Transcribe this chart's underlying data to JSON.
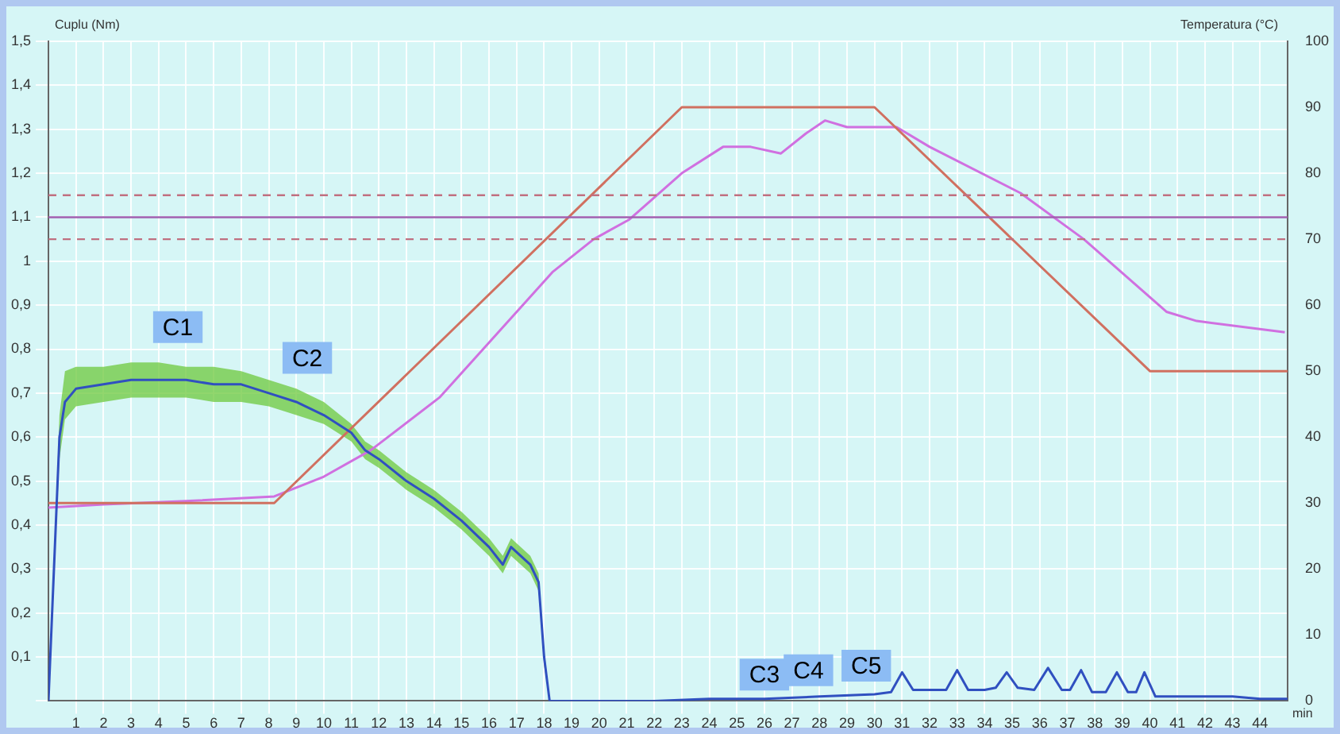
{
  "chart_data": {
    "type": "line",
    "ylabel": "Cuplu (Nm)",
    "y2label": "Temperatura (°C)",
    "xlabel": "min",
    "xlim": [
      0,
      45
    ],
    "xticks": [
      1,
      2,
      3,
      4,
      5,
      6,
      7,
      8,
      9,
      10,
      11,
      12,
      13,
      14,
      15,
      16,
      17,
      18,
      19,
      20,
      21,
      22,
      23,
      24,
      25,
      26,
      27,
      28,
      29,
      30,
      31,
      32,
      33,
      34,
      35,
      36,
      37,
      38,
      39,
      40,
      41,
      42,
      43,
      44
    ],
    "ylim": [
      0,
      1.5
    ],
    "yticks": [
      {
        "value": 0,
        "label": null
      },
      {
        "value": 0.1,
        "label": "0,1"
      },
      {
        "value": 0.2,
        "label": "0,2"
      },
      {
        "value": 0.3,
        "label": "0,3"
      },
      {
        "value": 0.4,
        "label": "0,4"
      },
      {
        "value": 0.5,
        "label": "0,5"
      },
      {
        "value": 0.6,
        "label": "0,6"
      },
      {
        "value": 0.7,
        "label": "0,7"
      },
      {
        "value": 0.8,
        "label": "0,8"
      },
      {
        "value": 0.9,
        "label": "0,9"
      },
      1,
      {
        "value": 1.1,
        "label": "1,1"
      },
      {
        "value": 1.2,
        "label": "1,2"
      },
      {
        "value": 1.3,
        "label": "1,3"
      },
      {
        "value": 1.4,
        "label": "1,4"
      },
      {
        "value": 1.5,
        "label": "1,5"
      }
    ],
    "y2lim": [
      0,
      100
    ],
    "y2ticks": [
      0,
      10,
      20,
      30,
      40,
      50,
      60,
      70,
      80,
      90,
      100
    ],
    "grid": true,
    "legend": false,
    "marker": "none",
    "series": [
      {
        "color": "#3050c0",
        "x": [
          0,
          0.2,
          0.4,
          0.6,
          1,
          2,
          3,
          4,
          5,
          6,
          7,
          8,
          9,
          10,
          11,
          11.5,
          12,
          13,
          14,
          15,
          16,
          16.5,
          16.8,
          17.5,
          17.8,
          18,
          18.2,
          20,
          22,
          24,
          26,
          28,
          30,
          30.6,
          31,
          31.4,
          32,
          32.6,
          33,
          33.4,
          34,
          34.4,
          34.8,
          35.2,
          35.8,
          36.3,
          36.8,
          37.1,
          37.5,
          37.9,
          38.4,
          38.8,
          39.2,
          39.5,
          39.8,
          40.2,
          41,
          42,
          43,
          44,
          45
        ],
        "values": [
          0,
          0.3,
          0.6,
          0.68,
          0.71,
          0.72,
          0.73,
          0.73,
          0.73,
          0.72,
          0.72,
          0.7,
          0.68,
          0.65,
          0.61,
          0.57,
          0.55,
          0.5,
          0.46,
          0.41,
          0.35,
          0.31,
          0.35,
          0.31,
          0.27,
          0.1,
          0,
          0,
          0,
          0.005,
          0.005,
          0.01,
          0.015,
          0.02,
          0.065,
          0.025,
          0.025,
          0.025,
          0.07,
          0.025,
          0.025,
          0.03,
          0.065,
          0.03,
          0.025,
          0.075,
          0.025,
          0.025,
          0.07,
          0.02,
          0.02,
          0.065,
          0.02,
          0.02,
          0.065,
          0.01,
          0.01,
          0.01,
          0.01,
          0.005,
          0.005
        ],
        "lower": [
          0,
          0.28,
          0.55,
          0.64,
          0.67,
          0.68,
          0.69,
          0.69,
          0.69,
          0.68,
          0.68,
          0.67,
          0.65,
          0.63,
          0.59,
          0.55,
          0.53,
          0.48,
          0.44,
          0.39,
          0.33,
          0.29,
          0.33,
          0.29,
          0.25,
          0.08,
          0,
          null,
          null,
          null,
          null,
          null,
          null,
          null,
          null,
          null,
          null,
          null,
          null,
          null,
          null,
          null,
          null,
          null,
          null,
          null,
          null,
          null,
          null,
          null,
          null,
          null,
          null,
          null,
          null,
          null,
          null,
          null,
          null,
          null,
          null
        ],
        "upper": [
          0,
          0.32,
          0.65,
          0.75,
          0.76,
          0.76,
          0.77,
          0.77,
          0.76,
          0.76,
          0.75,
          0.73,
          0.71,
          0.68,
          0.63,
          0.59,
          0.57,
          0.52,
          0.48,
          0.43,
          0.37,
          0.33,
          0.37,
          0.33,
          0.29,
          0.12,
          0,
          null,
          null,
          null,
          null,
          null,
          null,
          null,
          null,
          null,
          null,
          null,
          null,
          null,
          null,
          null,
          null,
          null,
          null,
          null,
          null,
          null,
          null,
          null,
          null,
          null,
          null,
          null,
          null,
          null,
          null,
          null,
          null,
          null,
          null
        ]
      },
      {
        "axis": "y2",
        "color": "#d07060",
        "x": [
          0,
          8.2,
          23,
          30,
          40,
          45
        ],
        "values": [
          30,
          30,
          90,
          90,
          50,
          50
        ]
      },
      {
        "axis": "y2",
        "color": "#d070e0",
        "x": [
          0,
          2,
          5,
          8.2,
          10,
          11.7,
          14.2,
          15.5,
          18.3,
          19.8,
          21.1,
          23,
          24.5,
          25.5,
          26.6,
          27.5,
          28.2,
          29,
          30.8,
          32,
          35.3,
          37.6,
          40.6,
          41.7,
          44.9
        ],
        "values": [
          29.3,
          29.8,
          30.3,
          31,
          34,
          38,
          46,
          52,
          65,
          70,
          73,
          80,
          84,
          84,
          83,
          86,
          88,
          87,
          87,
          84,
          77,
          70,
          59,
          57.6,
          55.9
        ]
      }
    ],
    "ref_lines": [
      {
        "axis": "y",
        "value": 1.1,
        "color": "#a060b0",
        "line_style": "solid"
      },
      {
        "axis": "y",
        "value": 1.15,
        "color": "#c07080",
        "line_style": "dashed"
      },
      {
        "axis": "y",
        "value": 1.05,
        "color": "#c07080",
        "line_style": "dashed"
      }
    ],
    "annotations": [
      {
        "text": "C1",
        "x": 4.7,
        "y": 0.85
      },
      {
        "text": "C2",
        "x": 9.4,
        "y": 0.78
      },
      {
        "text": "C3",
        "x": 26,
        "y": 0.06
      },
      {
        "text": "C4",
        "x": 27.6,
        "y": 0.07
      },
      {
        "text": "C5",
        "x": 29.7,
        "y": 0.08
      }
    ]
  }
}
